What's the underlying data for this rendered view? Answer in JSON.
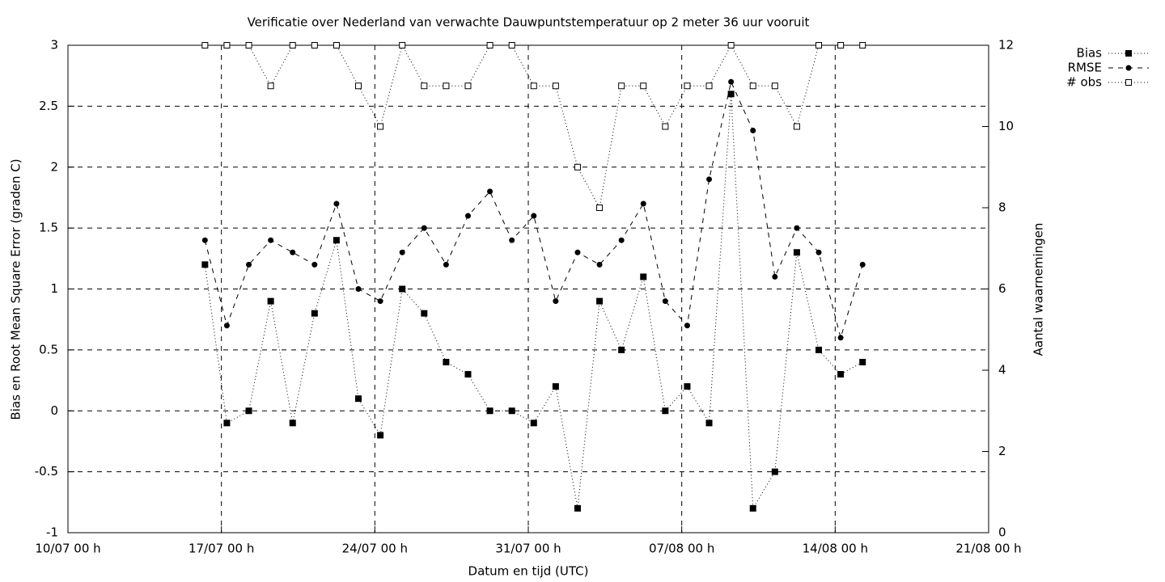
{
  "chart_data": {
    "type": "line",
    "title": "Verificatie over Nederland van verwachte Dauwpuntstemperatuur op 2 meter 36 uur vooruit",
    "x_label": "Datum en tijd (UTC)",
    "y_label": "Bias en Root Mean Square Error (graden C)",
    "y2_label": "Aantal waarnemingen",
    "x": [
      "16/07 06 h",
      "17/07 06 h",
      "18/07 06 h",
      "19/07 06 h",
      "20/07 06 h",
      "21/07 06 h",
      "22/07 06 h",
      "23/07 06 h",
      "24/07 06 h",
      "25/07 06 h",
      "26/07 06 h",
      "27/07 06 h",
      "28/07 06 h",
      "29/07 06 h",
      "30/07 06 h",
      "31/07 06 h",
      "01/08 06 h",
      "02/08 06 h",
      "03/08 06 h",
      "04/08 06 h",
      "05/08 06 h",
      "06/08 06 h",
      "07/08 06 h",
      "08/08 06 h",
      "09/08 06 h",
      "10/08 06 h",
      "11/08 06 h",
      "12/08 06 h",
      "13/08 06 h",
      "14/08 06 h",
      "15/08 06 h"
    ],
    "series": [
      {
        "name": "Bias",
        "color": "#000000",
        "line_style": "dotted",
        "marker": "filled-square",
        "values": [
          1.2,
          -0.1,
          0.0,
          0.9,
          -0.1,
          0.8,
          1.4,
          0.1,
          -0.2,
          1.0,
          0.8,
          0.4,
          0.3,
          0.0,
          0.0,
          -0.1,
          0.2,
          -0.8,
          0.9,
          0.5,
          1.1,
          0.0,
          0.2,
          -0.1,
          2.6,
          -0.8,
          -0.5,
          1.3,
          0.5,
          0.3,
          0.4
        ]
      },
      {
        "name": "RMSE",
        "color": "#000000",
        "line_style": "dashed",
        "marker": "circle",
        "values": [
          1.4,
          0.7,
          1.2,
          1.4,
          1.3,
          1.2,
          1.7,
          1.0,
          0.9,
          1.3,
          1.5,
          1.2,
          1.6,
          1.8,
          1.4,
          1.6,
          0.9,
          1.3,
          1.2,
          1.4,
          1.7,
          0.9,
          0.7,
          1.9,
          2.7,
          2.3,
          1.1,
          1.5,
          1.3,
          0.6,
          1.2
        ]
      },
      {
        "name": "# obs",
        "color": "#000000",
        "line_style": "dotted",
        "marker": "open-square",
        "axis": "y2",
        "values": [
          12,
          12,
          12,
          11,
          12,
          12,
          12,
          11,
          10,
          12,
          11,
          11,
          11,
          12,
          12,
          11,
          11,
          9,
          8,
          11,
          11,
          10,
          11,
          11,
          12,
          11,
          11,
          10,
          12,
          12,
          12
        ]
      }
    ],
    "xlim": [
      "10/07 00 h",
      "21/08 00 h"
    ],
    "xticks": [
      "10/07 00 h",
      "17/07 00 h",
      "24/07 00 h",
      "31/07 00 h",
      "07/08 00 h",
      "14/08 00 h",
      "21/08 00 h"
    ],
    "ylim": [
      -1,
      3
    ],
    "yticks": [
      -1,
      -0.5,
      0,
      0.5,
      1,
      1.5,
      2,
      2.5,
      3
    ],
    "y2lim": [
      0,
      12
    ],
    "y2ticks": [
      0,
      2,
      4,
      6,
      8,
      10,
      12
    ],
    "grid": true,
    "legend": "top-right-outside"
  }
}
